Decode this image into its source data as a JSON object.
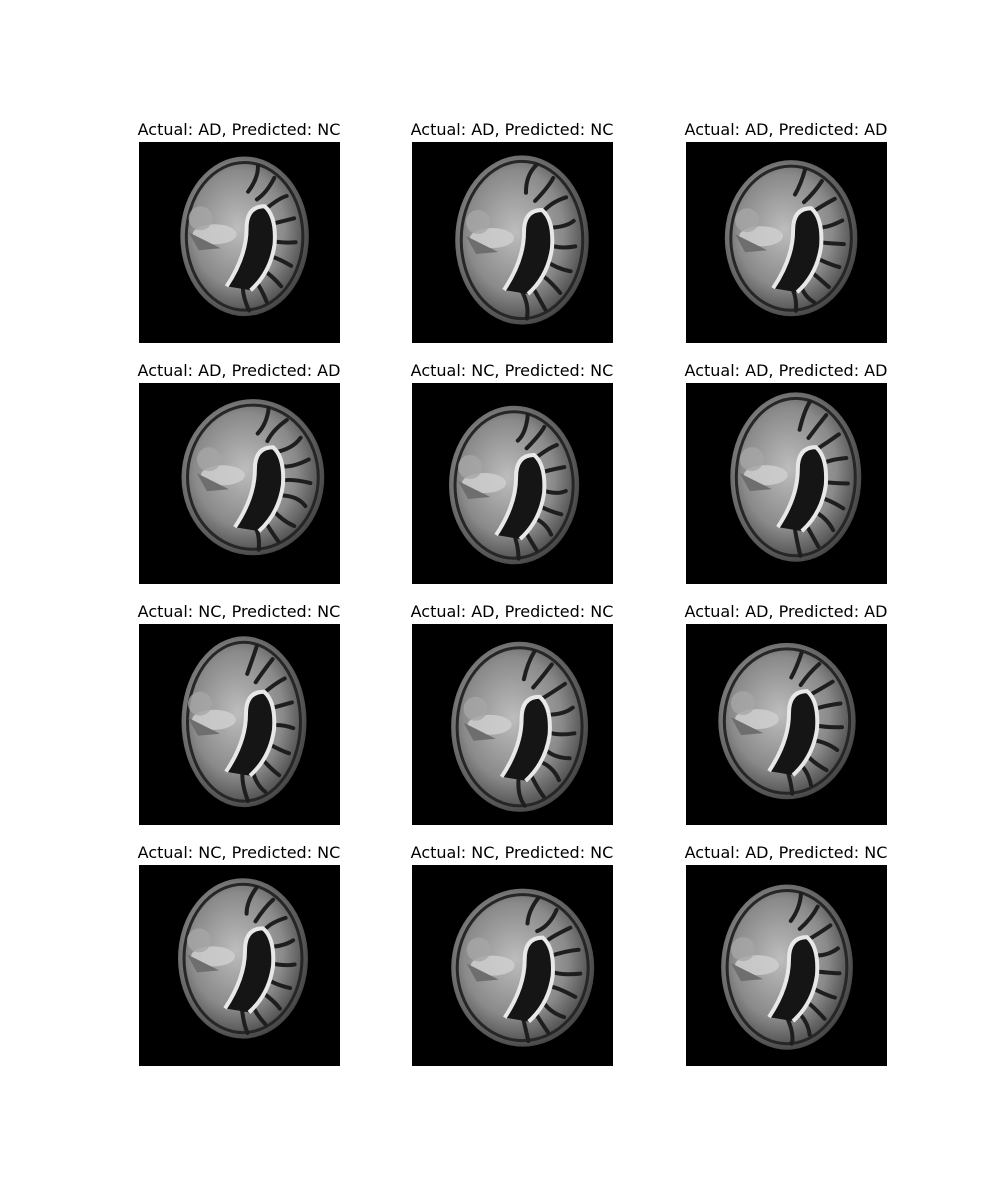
{
  "panels": [
    {
      "title": "Actual: AD, Predicted: NC"
    },
    {
      "title": "Actual: AD, Predicted: NC"
    },
    {
      "title": "Actual: AD, Predicted: AD"
    },
    {
      "title": "Actual: AD, Predicted: AD"
    },
    {
      "title": "Actual: NC, Predicted: NC"
    },
    {
      "title": "Actual: AD, Predicted: AD"
    },
    {
      "title": "Actual: NC, Predicted: NC"
    },
    {
      "title": "Actual: AD, Predicted: NC"
    },
    {
      "title": "Actual: AD, Predicted: AD"
    },
    {
      "title": "Actual: NC, Predicted: NC"
    },
    {
      "title": "Actual: NC, Predicted: NC"
    },
    {
      "title": "Actual: AD, Predicted: NC"
    }
  ]
}
